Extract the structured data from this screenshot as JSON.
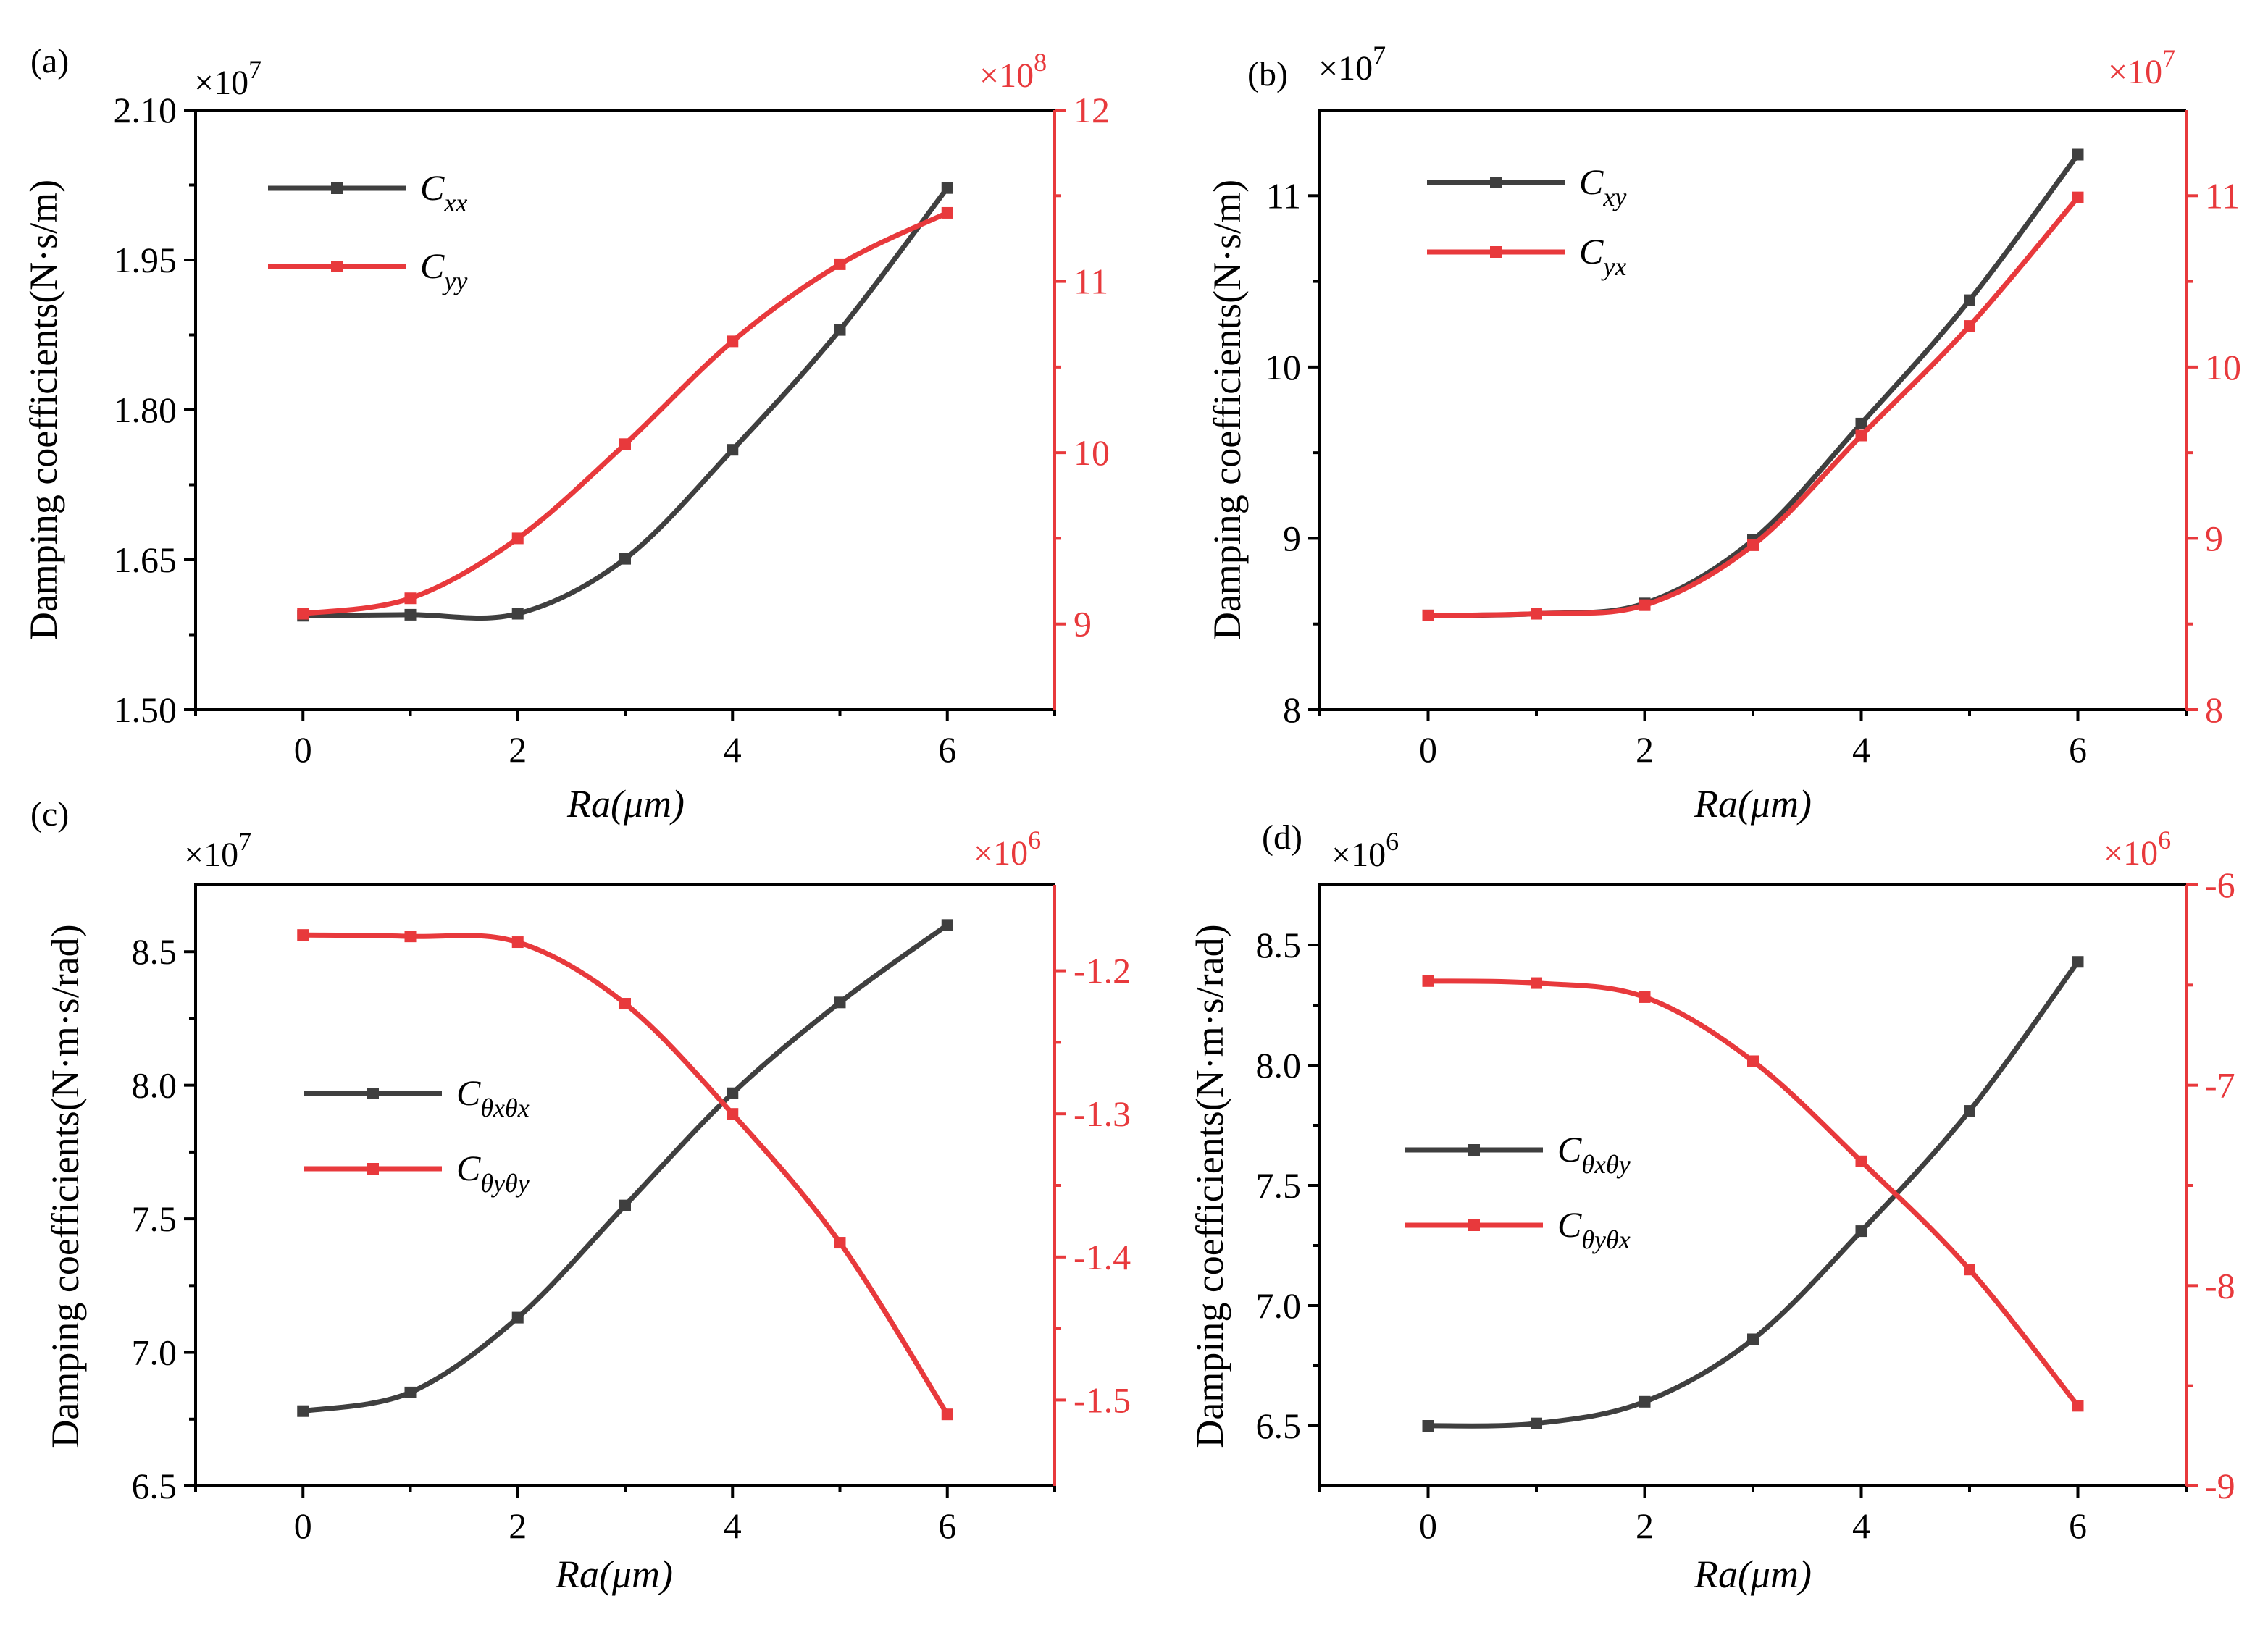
{
  "colors": {
    "left_series": "#3f3f3f",
    "right_series": "#e8393c",
    "axis": "#000000"
  },
  "chart_data": [
    {
      "type": "line",
      "panel_label": "(a)",
      "xlabel": "Ra(μm)",
      "x_ticks": [
        "0",
        "2",
        "4",
        "6"
      ],
      "xlim": [
        -1,
        7
      ],
      "ylabel": "Damping coefficients(N·s/m)",
      "y_multiplier": "×10",
      "y_multiplier_exp": "7",
      "ylim": [
        1.5,
        2.1
      ],
      "y_ticks": [
        "1.50",
        "1.65",
        "1.80",
        "1.95",
        "2.10"
      ],
      "y_tick_values": [
        1.5,
        1.65,
        1.8,
        1.95,
        2.1
      ],
      "y2_multiplier": "×10",
      "y2_multiplier_exp": "8",
      "y2lim": [
        8.5,
        12
      ],
      "y2_ticks": [
        "9",
        "10",
        "11",
        "12"
      ],
      "y2_tick_values": [
        9,
        10,
        11,
        12
      ],
      "legend_position": "upper-left",
      "series": [
        {
          "name": "C",
          "sub": "xx",
          "axis": "left",
          "x": [
            0,
            1,
            2,
            3,
            4,
            5,
            6
          ],
          "values": [
            1.594,
            1.595,
            1.596,
            1.651,
            1.76,
            1.88,
            2.022
          ]
        },
        {
          "name": "C",
          "sub": "yy",
          "axis": "right",
          "x": [
            0,
            1,
            2,
            3,
            4,
            5,
            6
          ],
          "values": [
            9.06,
            9.15,
            9.5,
            10.05,
            10.65,
            11.1,
            11.4
          ]
        }
      ]
    },
    {
      "type": "line",
      "panel_label": "(b)",
      "xlabel": "Ra(μm)",
      "x_ticks": [
        "0",
        "2",
        "4",
        "6"
      ],
      "xlim": [
        -1,
        7
      ],
      "ylabel": "Damping coefficients(N·s/m)",
      "y_multiplier": "×10",
      "y_multiplier_exp": "7",
      "ylim": [
        8,
        11.5
      ],
      "y_ticks": [
        "8",
        "9",
        "10",
        "11"
      ],
      "y_tick_values": [
        8,
        9,
        10,
        11
      ],
      "y2_multiplier": "×10",
      "y2_multiplier_exp": "7",
      "y2lim": [
        8,
        11.5
      ],
      "y2_ticks": [
        "8",
        "9",
        "10",
        "11"
      ],
      "y2_tick_values": [
        8,
        9,
        10,
        11
      ],
      "legend_position": "upper-left",
      "series": [
        {
          "name": "C",
          "sub": "xy",
          "axis": "left",
          "x": [
            0,
            1,
            2,
            3,
            4,
            5,
            6
          ],
          "values": [
            8.55,
            8.56,
            8.62,
            8.99,
            9.67,
            10.39,
            11.24
          ]
        },
        {
          "name": "C",
          "sub": "yx",
          "axis": "right",
          "x": [
            0,
            1,
            2,
            3,
            4,
            5,
            6
          ],
          "values": [
            8.55,
            8.56,
            8.61,
            8.96,
            9.6,
            10.24,
            10.99
          ]
        }
      ]
    },
    {
      "type": "line",
      "panel_label": "(c)",
      "xlabel": "Ra(μm)",
      "x_ticks": [
        "0",
        "2",
        "4",
        "6"
      ],
      "xlim": [
        -1,
        7
      ],
      "ylabel": "Damping coefficients(N·m·s/rad)",
      "y_multiplier": "×10",
      "y_multiplier_exp": "7",
      "ylim": [
        6.5,
        8.75
      ],
      "y_ticks": [
        "6.5",
        "7.0",
        "7.5",
        "8.0",
        "8.5"
      ],
      "y_tick_values": [
        6.5,
        7.0,
        7.5,
        8.0,
        8.5
      ],
      "y2_multiplier": "×10",
      "y2_multiplier_exp": "6",
      "y2lim": [
        -1.56,
        -1.14
      ],
      "y2_ticks": [
        "-1.5",
        "-1.4",
        "-1.3",
        "-1.2"
      ],
      "y2_tick_values": [
        -1.5,
        -1.4,
        -1.3,
        -1.2
      ],
      "legend_position": "center-left",
      "series": [
        {
          "name": "C",
          "sub": "θxθx",
          "axis": "left",
          "x": [
            0,
            1,
            2,
            3,
            4,
            5,
            6
          ],
          "values": [
            6.78,
            6.85,
            7.13,
            7.55,
            7.97,
            8.31,
            8.6
          ]
        },
        {
          "name": "C",
          "sub": "θyθy",
          "axis": "right",
          "x": [
            0,
            1,
            2,
            3,
            4,
            5,
            6
          ],
          "values": [
            -1.175,
            -1.176,
            -1.18,
            -1.223,
            -1.3,
            -1.39,
            -1.51
          ]
        }
      ]
    },
    {
      "type": "line",
      "panel_label": "(d)",
      "xlabel": "Ra(μm)",
      "x_ticks": [
        "0",
        "2",
        "4",
        "6"
      ],
      "xlim": [
        -1,
        7
      ],
      "ylabel": "Damping coefficients(N·m·s/rad)",
      "y_multiplier": "×10",
      "y_multiplier_exp": "6",
      "ylim": [
        6.25,
        8.75
      ],
      "y_ticks": [
        "6.5",
        "7.0",
        "7.5",
        "8.0",
        "8.5"
      ],
      "y_tick_values": [
        6.5,
        7.0,
        7.5,
        8.0,
        8.5
      ],
      "y2_multiplier": "×10",
      "y2_multiplier_exp": "6",
      "y2lim": [
        -9,
        -6
      ],
      "y2_ticks": [
        "-9",
        "-8",
        "-7",
        "-6"
      ],
      "y2_tick_values": [
        -9,
        -8,
        -7,
        -6
      ],
      "legend_position": "center-left",
      "series": [
        {
          "name": "C",
          "sub": "θxθy",
          "axis": "left",
          "x": [
            0,
            1,
            2,
            3,
            4,
            5,
            6
          ],
          "values": [
            6.5,
            6.51,
            6.6,
            6.86,
            7.31,
            7.81,
            8.43
          ]
        },
        {
          "name": "C",
          "sub": "θyθx",
          "axis": "right",
          "x": [
            0,
            1,
            2,
            3,
            4,
            5,
            6
          ],
          "values": [
            -6.48,
            -6.49,
            -6.56,
            -6.88,
            -7.38,
            -7.92,
            -8.6
          ]
        }
      ]
    }
  ]
}
